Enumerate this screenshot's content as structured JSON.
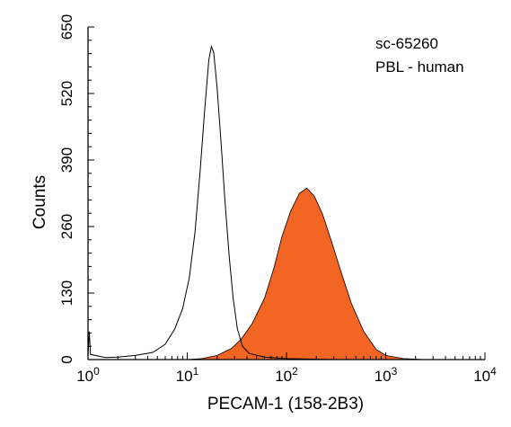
{
  "chart_data": {
    "type": "histogram-overlay",
    "xscale": "log",
    "xlim": [
      1,
      10000
    ],
    "ylim": [
      0,
      650
    ],
    "xlabel": "PECAM-1 (158-2B3)",
    "ylabel": "Counts",
    "y_ticks": [
      "0",
      "130",
      "260",
      "390",
      "520",
      "650"
    ],
    "y_tick_values": [
      0,
      130,
      260,
      390,
      520,
      650
    ],
    "x_ticks": [
      {
        "base": "10",
        "exp": "0",
        "value": 1
      },
      {
        "base": "10",
        "exp": "1",
        "value": 10
      },
      {
        "base": "10",
        "exp": "2",
        "value": 100
      },
      {
        "base": "10",
        "exp": "3",
        "value": 1000
      },
      {
        "base": "10",
        "exp": "4",
        "value": 10000
      }
    ],
    "annotations": [
      "sc-65260",
      "PBL - human"
    ],
    "series": [
      {
        "style": "outline",
        "color": "#000000",
        "points": [
          [
            1.0,
            5
          ],
          [
            1.03,
            55
          ],
          [
            1.06,
            10
          ],
          [
            1.5,
            4
          ],
          [
            2.0,
            5
          ],
          [
            3.0,
            8
          ],
          [
            4.5,
            14
          ],
          [
            6.0,
            30
          ],
          [
            7.5,
            60
          ],
          [
            9.0,
            100
          ],
          [
            10.5,
            160
          ],
          [
            12.0,
            250
          ],
          [
            13.5,
            370
          ],
          [
            15.0,
            490
          ],
          [
            16.5,
            585
          ],
          [
            17.5,
            612
          ],
          [
            18.5,
            600
          ],
          [
            20.0,
            530
          ],
          [
            22.0,
            420
          ],
          [
            24.0,
            310
          ],
          [
            26.5,
            200
          ],
          [
            29.0,
            120
          ],
          [
            32.0,
            60
          ],
          [
            36.0,
            26
          ],
          [
            42.0,
            12
          ],
          [
            60.0,
            5
          ],
          [
            100.0,
            2
          ],
          [
            300.0,
            0
          ],
          [
            10000.0,
            0
          ]
        ]
      },
      {
        "style": "filled",
        "color": "#f26522",
        "points": [
          [
            10.0,
            0
          ],
          [
            14.0,
            2
          ],
          [
            20.0,
            8
          ],
          [
            28.0,
            22
          ],
          [
            35.0,
            40
          ],
          [
            45.0,
            70
          ],
          [
            60.0,
            120
          ],
          [
            75.0,
            180
          ],
          [
            90.0,
            240
          ],
          [
            110.0,
            290
          ],
          [
            135.0,
            325
          ],
          [
            160.0,
            335
          ],
          [
            190.0,
            320
          ],
          [
            230.0,
            285
          ],
          [
            280.0,
            235
          ],
          [
            350.0,
            175
          ],
          [
            450.0,
            110
          ],
          [
            600.0,
            55
          ],
          [
            800.0,
            20
          ],
          [
            1000.0,
            8
          ],
          [
            1500.0,
            2
          ],
          [
            2500.0,
            0
          ]
        ]
      }
    ]
  }
}
